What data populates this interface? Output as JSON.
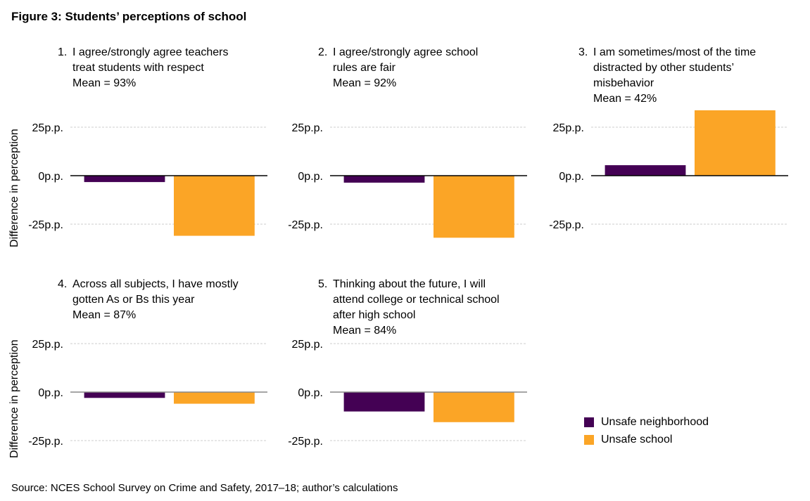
{
  "figure_title": "Figure 3: Students’ perceptions of school",
  "source": "Source: NCES School Survey on Crime and Safety, 2017–18; author’s calculations",
  "colors": {
    "unsafe_neighborhood": "#440154",
    "unsafe_school": "#FBA526",
    "zero_line_row1": "#000000",
    "zero_line_row2": "#888888",
    "grid": "#cccccc"
  },
  "legend": [
    {
      "label": "Unsafe neighborhood",
      "color": "#440154"
    },
    {
      "label": "Unsafe school",
      "color": "#FBA526"
    }
  ],
  "chart_data": {
    "type": "bar",
    "title": "Figure 3: Students’ perceptions of school",
    "ylabel": "Difference in perception",
    "yticks": [
      "25p.p.",
      "0p.p.",
      "-25p.p."
    ],
    "ytick_values": [
      25,
      0,
      -25
    ],
    "ylim": [
      -25,
      25
    ],
    "grid": true,
    "legend_position": "bottom-right",
    "series_names": [
      "Unsafe neighborhood",
      "Unsafe school"
    ],
    "panels": [
      {
        "number": "1.",
        "title": "I agree/strongly agree teachers\ntreat students with respect\nMean = 93%",
        "values": [
          -3.3,
          -31
        ]
      },
      {
        "number": "2.",
        "title": "I agree/strongly agree school\nrules are fair\nMean = 92%",
        "values": [
          -3.6,
          -32
        ]
      },
      {
        "number": "3.",
        "title": "I am sometimes/most of the time\ndistracted by other students’\nmisbehavior\nMean = 42%",
        "values": [
          5.4,
          33.7
        ]
      },
      {
        "number": "4.",
        "title": "Across all subjects, I have mostly\ngotten As or Bs this year\nMean = 87%",
        "values": [
          -3,
          -6
        ]
      },
      {
        "number": "5.",
        "title": "Thinking about the future, I will\nattend college or technical school\nafter high school\nMean = 84%",
        "values": [
          -10,
          -15.5
        ]
      }
    ]
  }
}
